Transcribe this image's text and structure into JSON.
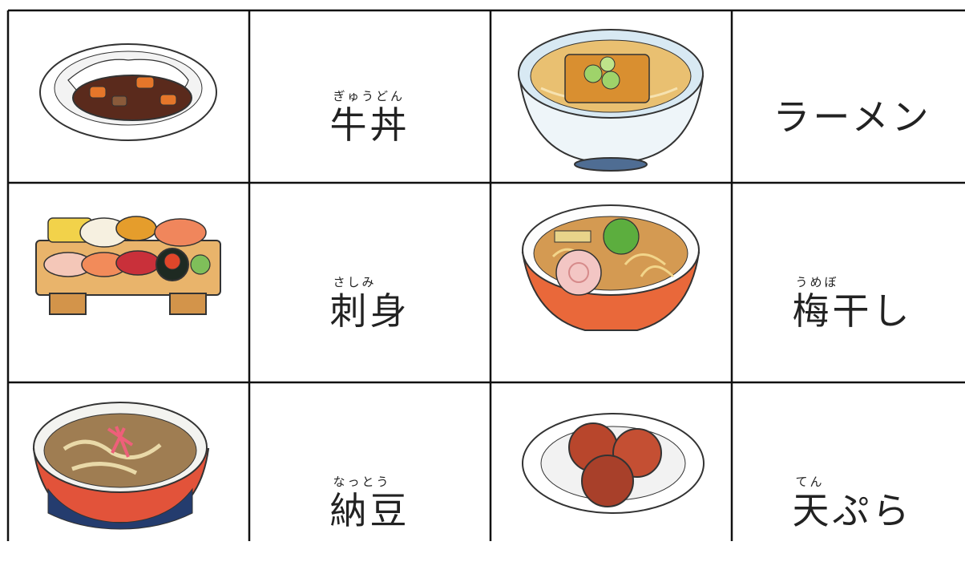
{
  "table": {
    "rows": [
      [
        {
          "ruby": "ぎゅうどん",
          "text": "牛丼"
        },
        {
          "text": "ラーメン"
        }
      ],
      [
        {
          "ruby": "さしみ",
          "text": "刺身"
        },
        {
          "ruby": "うめぼ",
          "text": "梅干し"
        }
      ],
      [
        {
          "ruby": "なっとう",
          "text": "納豆"
        },
        {
          "ruby": "てん",
          "text": "天ぷら"
        }
      ]
    ]
  }
}
